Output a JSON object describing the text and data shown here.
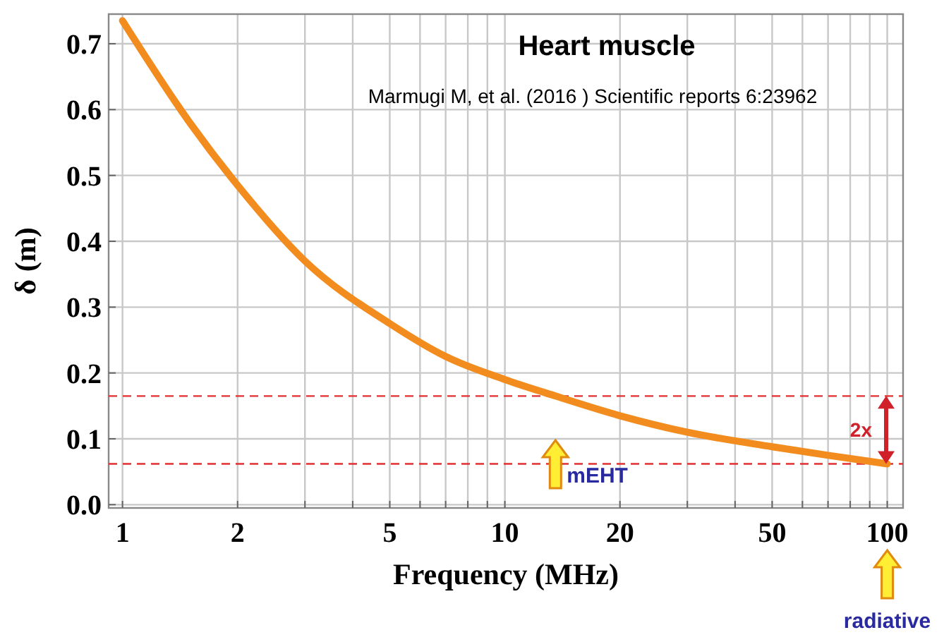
{
  "chart_data": {
    "type": "line",
    "title": "Heart muscle",
    "subtitle": "Marmugi M, et al. (2016 ) Scientific reports 6:23962",
    "xlabel": "Frequency (MHz)",
    "ylabel": "δ (m)",
    "x": [
      1,
      1.5,
      2,
      3,
      5,
      7,
      10,
      13.56,
      20,
      30,
      50,
      70,
      100
    ],
    "series": [
      {
        "color": "#f28c1e",
        "values": [
          0.735,
          0.58,
          0.485,
          0.37,
          0.275,
          0.225,
          0.19,
          0.165,
          0.135,
          0.11,
          0.088,
          0.075,
          0.062
        ]
      }
    ],
    "log": "x",
    "xlim": [
      0.92,
      110
    ],
    "ylim": [
      -0.005,
      0.745
    ],
    "xticks": [
      1,
      2,
      {
        "value": 3,
        "label": null
      },
      {
        "value": 4,
        "label": null
      },
      5,
      {
        "value": 6,
        "label": null
      },
      {
        "value": 7,
        "label": null
      },
      {
        "value": 8,
        "label": null
      },
      {
        "value": 9,
        "label": null
      },
      10,
      20,
      {
        "value": 30,
        "label": null
      },
      {
        "value": 40,
        "label": null
      },
      50,
      {
        "value": 60,
        "label": null
      },
      {
        "value": 70,
        "label": null
      },
      {
        "value": 80,
        "label": null
      },
      {
        "value": 90,
        "label": null
      },
      100
    ],
    "yticks": [
      {
        "value": 0,
        "label": "0.0"
      },
      0.1,
      0.2,
      0.3,
      0.4,
      0.5,
      0.6,
      0.7
    ],
    "grid": true,
    "marker": "none",
    "line_style": "solid",
    "ref_lines": [
      {
        "axis": "y",
        "value": 0.165,
        "color": "#e03030",
        "line_style": "dashed"
      },
      {
        "axis": "y",
        "value": 0.062,
        "color": "#e03030",
        "line_style": "dashed"
      }
    ],
    "annotations": [
      "2x",
      "mEHT",
      "radiative"
    ]
  }
}
